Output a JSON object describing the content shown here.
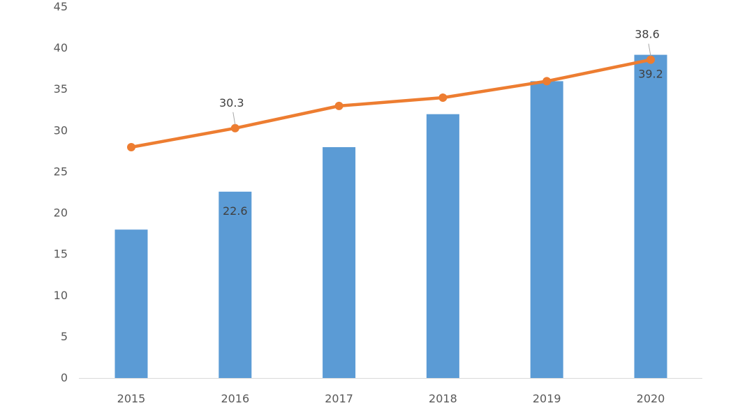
{
  "chart_data": {
    "type": "bar",
    "categories": [
      "2015",
      "2016",
      "2017",
      "2018",
      "2019",
      "2020"
    ],
    "series": [
      {
        "type": "bar",
        "values": [
          18.0,
          22.6,
          28.0,
          32.0,
          36.0,
          39.2
        ],
        "color": "#5B9BD5",
        "data_labels": [
          null,
          "22.6",
          null,
          null,
          null,
          "39.2"
        ]
      },
      {
        "type": "line",
        "values": [
          28.0,
          30.3,
          33.0,
          34.0,
          36.0,
          38.6
        ],
        "color": "#ED7D31",
        "data_labels": [
          null,
          "30.3",
          null,
          null,
          null,
          "38.6"
        ]
      }
    ],
    "yticks": [
      "0",
      "5",
      "10",
      "15",
      "20",
      "25",
      "30",
      "35",
      "40",
      "45"
    ],
    "ylim": [
      0,
      45
    ],
    "grid": false,
    "legend": "none"
  }
}
